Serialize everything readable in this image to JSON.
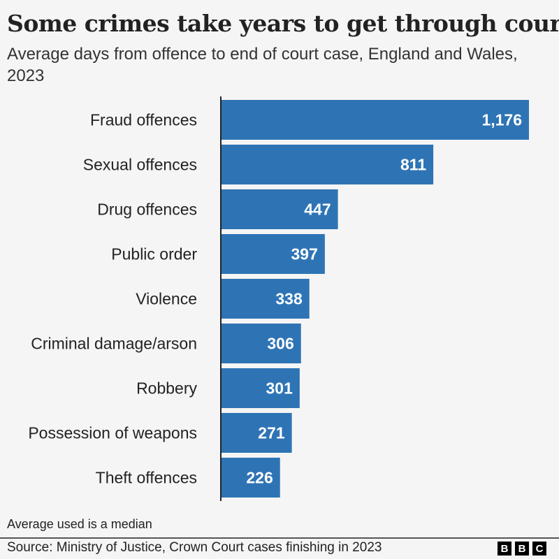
{
  "chart_data": {
    "type": "bar",
    "orientation": "horizontal",
    "title": "Some crimes take years to get through court",
    "subtitle": "Average days from offence to end of court case, England and Wales, 2023",
    "categories": [
      "Fraud offences",
      "Sexual offences",
      "Drug offences",
      "Public order",
      "Violence",
      "Criminal damage/arson",
      "Robbery",
      "Possession of weapons",
      "Theft offences"
    ],
    "values": [
      1176,
      811,
      447,
      397,
      338,
      306,
      301,
      271,
      226
    ],
    "value_labels": [
      "1,176",
      "811",
      "447",
      "397",
      "338",
      "306",
      "301",
      "271",
      "226"
    ],
    "xlim": [
      0,
      1176
    ],
    "bar_color": "#2e74b5",
    "grid": false
  },
  "note": "Average used is a median",
  "source": "Source: Ministry of Justice, Crown Court cases finishing in 2023",
  "logo": [
    "B",
    "B",
    "C"
  ]
}
